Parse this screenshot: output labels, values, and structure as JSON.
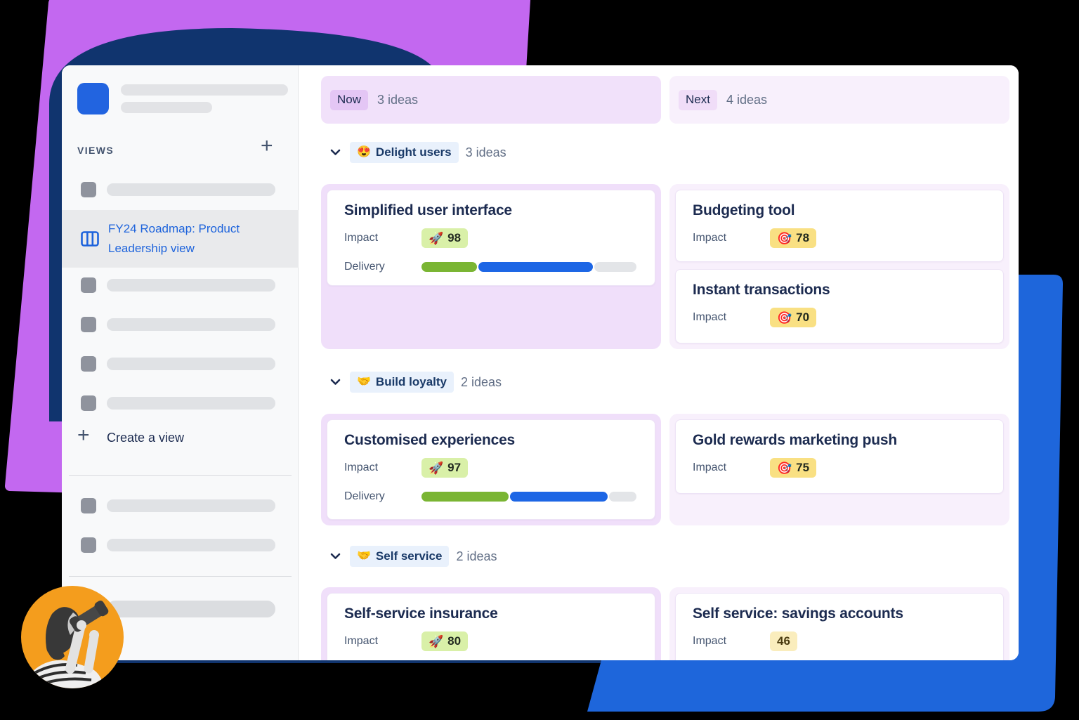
{
  "shapes": {
    "purple_hex": "#C368F0",
    "navy_hex": "#10346E",
    "blue_hex": "#1E66DB",
    "orange_hex": "#F49D1D"
  },
  "sidebar": {
    "views_label": "VIEWS",
    "views_plus_icon": "+",
    "selected_view": "FY24 Roadmap: Product Leadership view",
    "create_plus_icon": "+",
    "create_view_label": "Create a view"
  },
  "board": {
    "field_labels": {
      "impact": "Impact",
      "delivery": "Delivery"
    },
    "columns": [
      {
        "badge": "Now",
        "count": "3 ideas"
      },
      {
        "badge": "Next",
        "count": "4 ideas"
      }
    ],
    "sections": [
      {
        "emoji": "😍",
        "label": "Delight users",
        "count": "3 ideas",
        "now_cards": [
          {
            "title": "Simplified user interface",
            "impact_emoji": "🚀",
            "impact": "98",
            "delivery": {
              "done": 26,
              "in_progress": 54,
              "todo": 20
            }
          }
        ],
        "next_cards": [
          {
            "title": "Budgeting tool",
            "impact_emoji": "🎯",
            "impact": "78"
          },
          {
            "title": "Instant transactions",
            "impact_emoji": "🎯",
            "impact": "70"
          }
        ]
      },
      {
        "emoji": "🤝",
        "label": "Build loyalty",
        "count": "2 ideas",
        "now_cards": [
          {
            "title": "Customised experiences",
            "impact_emoji": "🚀",
            "impact": "97",
            "delivery": {
              "done": 41,
              "in_progress": 46,
              "todo": 13
            }
          }
        ],
        "next_cards": [
          {
            "title": "Gold rewards marketing push",
            "impact_emoji": "🎯",
            "impact": "75"
          }
        ]
      },
      {
        "emoji": "🤝",
        "label": "Self service",
        "count": "2 ideas",
        "now_cards": [
          {
            "title": "Self-service insurance",
            "impact_emoji": "🚀",
            "impact": "80"
          }
        ],
        "next_cards": [
          {
            "title": "Self service: savings accounts",
            "impact_emoji": "",
            "impact": "46"
          }
        ]
      }
    ]
  },
  "badge_colors": {
    "rocket_badge": "#D9F0A8",
    "target_badge": "#F9E083",
    "plain_badge": "#FAEDBD"
  },
  "delivery_colors": {
    "done": "#7AB533",
    "in_progress": "#1D66E5",
    "todo": "#E3E5E8"
  }
}
